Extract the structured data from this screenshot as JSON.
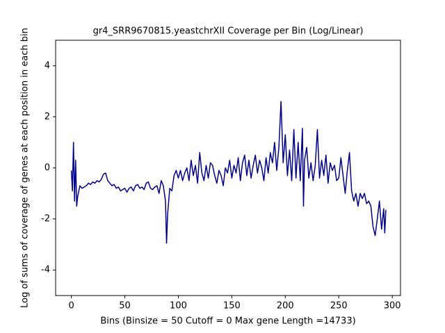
{
  "chart_data": {
    "type": "line",
    "title": "gr4_SRR9670815.yeastchrXII Coverage per Bin (Log/Linear)",
    "x_label": "Bins  (Binsize = 50 Cutoff = 0 Max gene Length =14733)",
    "y_label": "Log of sums of coverage of genes at each position in each bin",
    "xlim": [
      -14.7,
      307.7
    ],
    "ylim": [
      -5,
      5
    ],
    "xticks": [
      0,
      50,
      100,
      150,
      200,
      250,
      300
    ],
    "yticks": [
      -4,
      -2,
      0,
      2,
      4
    ],
    "series": [
      {
        "color": "#00008b",
        "x": [
          0,
          1,
          2,
          3,
          4,
          5,
          6,
          8,
          10,
          12,
          14,
          16,
          18,
          20,
          22,
          24,
          26,
          28,
          30,
          32,
          34,
          36,
          38,
          40,
          42,
          44,
          46,
          48,
          50,
          52,
          54,
          56,
          58,
          60,
          62,
          64,
          66,
          68,
          70,
          72,
          74,
          76,
          78,
          80,
          82,
          84,
          86,
          88,
          89,
          90,
          92,
          94,
          96,
          98,
          100,
          102,
          104,
          106,
          108,
          110,
          112,
          114,
          116,
          118,
          120,
          122,
          124,
          126,
          128,
          130,
          132,
          134,
          136,
          138,
          140,
          142,
          144,
          146,
          148,
          150,
          152,
          154,
          156,
          158,
          160,
          162,
          164,
          166,
          168,
          170,
          172,
          174,
          176,
          178,
          180,
          182,
          184,
          186,
          188,
          190,
          192,
          194,
          196,
          198,
          200,
          202,
          204,
          206,
          208,
          210,
          212,
          214,
          216,
          217,
          218,
          220,
          222,
          224,
          226,
          228,
          230,
          232,
          234,
          236,
          238,
          240,
          242,
          244,
          246,
          248,
          250,
          252,
          254,
          256,
          258,
          260,
          262,
          264,
          266,
          268,
          270,
          272,
          274,
          276,
          278,
          280,
          282,
          284,
          286,
          288,
          290,
          292,
          293,
          294
        ],
        "values": [
          -0.1,
          -0.9,
          1.0,
          -1.3,
          0.3,
          -1.5,
          -1.1,
          -0.7,
          -0.8,
          -0.75,
          -0.7,
          -0.6,
          -0.65,
          -0.55,
          -0.6,
          -0.5,
          -0.55,
          -0.45,
          -0.25,
          -0.2,
          -0.5,
          -0.6,
          -0.7,
          -0.65,
          -0.8,
          -0.75,
          -0.9,
          -0.85,
          -0.8,
          -0.95,
          -0.8,
          -0.75,
          -0.9,
          -0.7,
          -0.65,
          -0.8,
          -0.75,
          -0.85,
          -0.6,
          -0.55,
          -0.8,
          -0.85,
          -0.75,
          -0.7,
          -1.0,
          -0.5,
          -0.7,
          -1.3,
          -2.95,
          -1.8,
          -0.8,
          -0.9,
          -0.3,
          -0.1,
          -0.4,
          -0.1,
          -0.5,
          -0.2,
          0.0,
          -0.5,
          0.3,
          -0.3,
          0.1,
          -0.6,
          0.6,
          -0.2,
          -0.5,
          0.1,
          -0.4,
          0.2,
          0.1,
          -0.3,
          -0.6,
          -0.1,
          -0.3,
          -0.7,
          0.0,
          -0.2,
          0.3,
          -0.4,
          0.1,
          -0.2,
          0.4,
          -0.5,
          0.2,
          0.5,
          -0.3,
          0.3,
          -0.4,
          0.1,
          0.5,
          -0.2,
          0.3,
          0.0,
          -0.5,
          0.4,
          -0.2,
          0.6,
          0.2,
          1.0,
          -0.1,
          0.8,
          2.6,
          0.2,
          1.3,
          -0.3,
          0.7,
          -0.5,
          1.5,
          -0.4,
          1.0,
          -0.5,
          1.55,
          -1.5,
          0.3,
          0.8,
          -0.4,
          0.2,
          -0.5,
          0.1,
          1.5,
          -0.4,
          0.3,
          -0.3,
          0.5,
          -0.6,
          0.2,
          -0.1,
          0.1,
          -0.5,
          -0.4,
          0.4,
          -0.3,
          -1.0,
          -0.1,
          0.6,
          -0.9,
          -1.3,
          -1.0,
          -1.5,
          -1.0,
          -1.2,
          -1.0,
          -1.4,
          -1.3,
          -1.5,
          -2.3,
          -2.65,
          -2.0,
          -1.3,
          -2.4,
          -1.6,
          -2.55,
          -1.65
        ]
      }
    ]
  }
}
